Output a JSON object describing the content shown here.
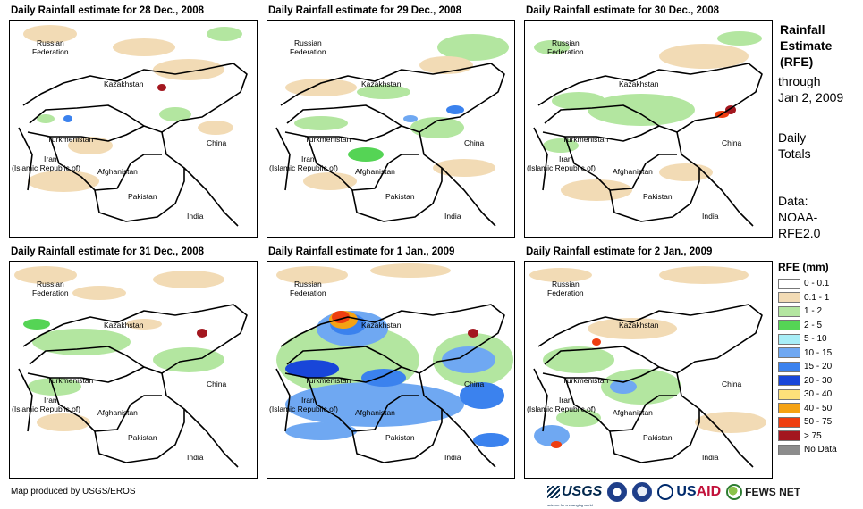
{
  "panels": [
    {
      "title": "Daily Rainfall estimate for 28 Dec., 2008"
    },
    {
      "title": "Daily Rainfall estimate for 29 Dec., 2008"
    },
    {
      "title": "Daily Rainfall estimate for 30 Dec., 2008"
    },
    {
      "title": "Daily Rainfall estimate for 31 Dec., 2008"
    },
    {
      "title": "Daily Rainfall estimate for 1 Jan., 2009"
    },
    {
      "title": "Daily Rainfall estimate for 2 Jan., 2009"
    }
  ],
  "country_labels": {
    "russia_line1": "Russian",
    "russia_line2": "Federation",
    "kazakhstan": "Kazakhstan",
    "turkmenistan": "Turkmenistan",
    "iran_line1": "Iran",
    "iran_line2": "(Islamic Republic of)",
    "afghanistan": "Afghanistan",
    "pakistan": "Pakistan",
    "china": "China",
    "india": "India"
  },
  "sidebar": {
    "title_line1": "Rainfall",
    "title_line2": "Estimate",
    "title_line3": "(RFE)",
    "through_line1": "through",
    "through_line2": "Jan 2, 2009",
    "daily_line1": "Daily",
    "daily_line2": "Totals",
    "data_line1": "Data:",
    "data_line2": "NOAA-",
    "data_line3": "RFE2.0"
  },
  "legend": {
    "title": "RFE (mm)",
    "items": [
      {
        "label": "0 - 0.1",
        "color": "#ffffff"
      },
      {
        "label": "0.1 - 1",
        "color": "#f2dbb5"
      },
      {
        "label": "1 - 2",
        "color": "#b3e6a0"
      },
      {
        "label": "2 - 5",
        "color": "#55d455"
      },
      {
        "label": "5 - 10",
        "color": "#a8eef7"
      },
      {
        "label": "10 - 15",
        "color": "#6fa8f2"
      },
      {
        "label": "15 - 20",
        "color": "#3b82ee"
      },
      {
        "label": "20 - 30",
        "color": "#1846d9"
      },
      {
        "label": "30 - 40",
        "color": "#fde07a"
      },
      {
        "label": "40 - 50",
        "color": "#f5a213"
      },
      {
        "label": "50 - 75",
        "color": "#ee3e10"
      },
      {
        "label": "> 75",
        "color": "#a3171f"
      },
      {
        "label": "No Data",
        "color": "#8c8c8c"
      }
    ]
  },
  "footer": {
    "credit": "Map produced by USGS/EROS",
    "logo_usgs": "USGS",
    "logo_usgs_sub": "science for a changing world",
    "logo_usaid_left": "US",
    "logo_usaid_right": "AID",
    "logo_fews": "FEWS NET"
  }
}
